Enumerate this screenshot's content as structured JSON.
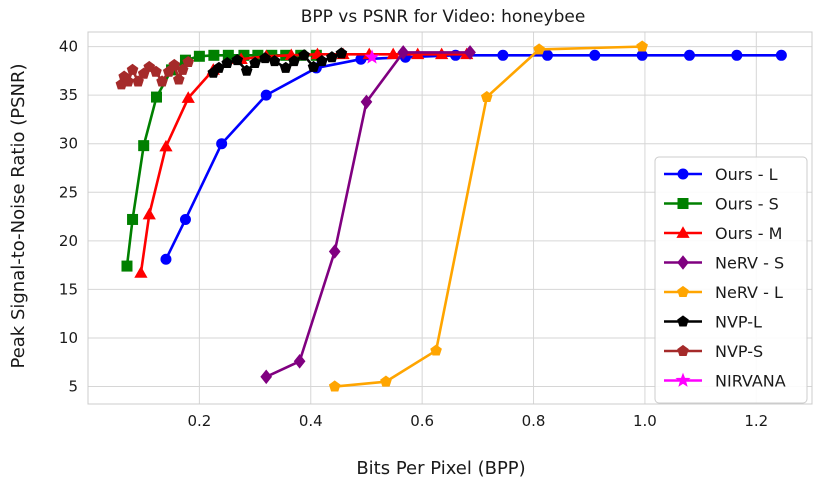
{
  "chart_data": {
    "type": "line",
    "title": "BPP vs PSNR for Video: honeybee",
    "xlabel": "Bits Per Pixel (BPP)",
    "ylabel": "Peak Signal-to-Noise Ratio (PSNR)",
    "xlim": [
      0.0,
      1.3
    ],
    "ylim": [
      3.2,
      41.5
    ],
    "xticks": [
      0.2,
      0.4,
      0.6,
      0.8,
      1.0,
      1.2
    ],
    "xtick_labels": [
      "0.2",
      "0.4",
      "0.6",
      "0.8",
      "1.0",
      "1.2"
    ],
    "yticks": [
      5,
      10,
      15,
      20,
      25,
      30,
      35,
      40
    ],
    "ytick_labels": [
      "5",
      "10",
      "15",
      "20",
      "25",
      "30",
      "35",
      "40"
    ],
    "grid": true,
    "legend_position": "right",
    "series": [
      {
        "name": "Ours - L",
        "color": "#0000ff",
        "marker": "circle",
        "x": [
          0.14,
          0.175,
          0.24,
          0.32,
          0.41,
          0.49,
          0.57,
          0.66,
          0.745,
          0.825,
          0.91,
          0.995,
          1.08,
          1.165,
          1.245
        ],
        "y": [
          18.1,
          22.2,
          30.0,
          35.0,
          37.8,
          38.7,
          38.9,
          39.1,
          39.1,
          39.1,
          39.1,
          39.1,
          39.1,
          39.1,
          39.1
        ]
      },
      {
        "name": "Ours - S",
        "color": "#008000",
        "marker": "square",
        "x": [
          0.07,
          0.08,
          0.1,
          0.123,
          0.15,
          0.175,
          0.2,
          0.226,
          0.252,
          0.28,
          0.305,
          0.33,
          0.355,
          0.382,
          0.41
        ],
        "y": [
          17.4,
          22.2,
          29.8,
          34.8,
          37.6,
          38.6,
          39.0,
          39.1,
          39.1,
          39.1,
          39.1,
          39.1,
          39.1,
          39.1,
          39.1
        ]
      },
      {
        "name": "Ours - M",
        "color": "#ff0000",
        "marker": "triangle",
        "x": [
          0.095,
          0.11,
          0.14,
          0.18,
          0.225,
          0.275,
          0.32,
          0.365,
          0.412,
          0.458,
          0.505,
          0.548,
          0.592,
          0.635,
          0.68
        ],
        "y": [
          16.7,
          22.7,
          29.7,
          34.7,
          37.6,
          38.7,
          39.0,
          39.1,
          39.2,
          39.2,
          39.2,
          39.2,
          39.2,
          39.2,
          39.2
        ]
      },
      {
        "name": "NeRV - S",
        "color": "#800080",
        "marker": "diamond",
        "x": [
          0.32,
          0.38,
          0.443,
          0.5,
          0.566,
          0.686
        ],
        "y": [
          6.0,
          7.6,
          18.9,
          34.3,
          39.4,
          39.4
        ]
      },
      {
        "name": "NeRV - L",
        "color": "#ffa500",
        "marker": "pentagon",
        "x": [
          0.443,
          0.535,
          0.625,
          0.716,
          0.81,
          0.995
        ],
        "y": [
          5.0,
          5.5,
          8.7,
          34.8,
          39.7,
          40.0
        ]
      },
      {
        "name": "NVP-L",
        "color": "#000000",
        "marker": "pentagon",
        "x": [
          0.225,
          0.235,
          0.25,
          0.268,
          0.285,
          0.3,
          0.318,
          0.335,
          0.355,
          0.37,
          0.388,
          0.405,
          0.42,
          0.438,
          0.455
        ],
        "y": [
          37.3,
          37.8,
          38.3,
          38.6,
          37.5,
          38.3,
          38.8,
          38.5,
          37.8,
          38.5,
          39.1,
          37.9,
          38.5,
          38.9,
          39.3
        ]
      },
      {
        "name": "NVP-S",
        "color": "#a52a2a",
        "marker": "pentagon",
        "x": [
          0.06,
          0.065,
          0.072,
          0.08,
          0.09,
          0.1,
          0.11,
          0.122,
          0.133,
          0.145,
          0.155,
          0.163,
          0.17,
          0.18
        ],
        "y": [
          36.1,
          36.9,
          36.4,
          37.6,
          36.4,
          37.2,
          37.9,
          37.4,
          36.4,
          37.4,
          38.1,
          36.6,
          37.6,
          38.4
        ]
      },
      {
        "name": "NIRVANA",
        "color": "#ff00ff",
        "marker": "star",
        "x": [
          0.51
        ],
        "y": [
          38.9
        ]
      }
    ]
  }
}
